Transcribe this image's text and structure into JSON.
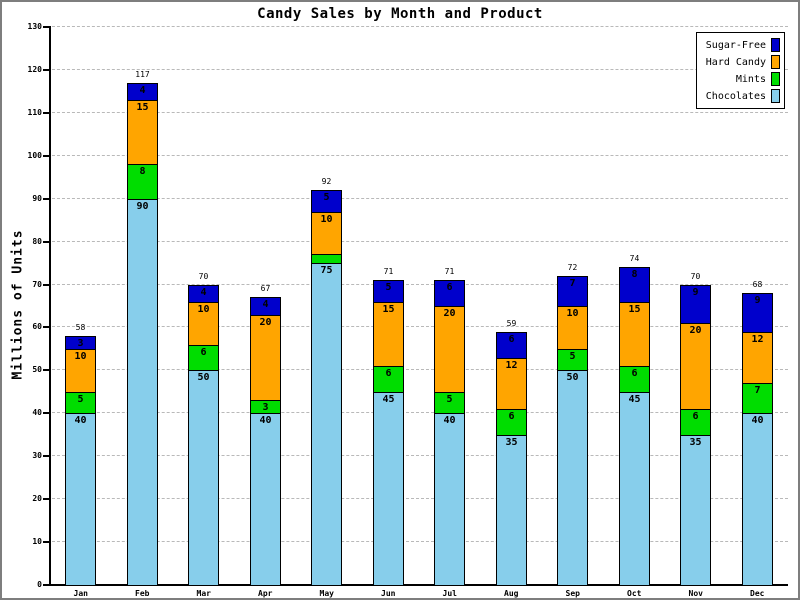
{
  "chart_data": {
    "type": "bar",
    "stacked": true,
    "title": "Candy Sales by Month and Product",
    "ylabel": "Millions of Units",
    "categories": [
      "Jan",
      "Feb",
      "Mar",
      "Apr",
      "May",
      "Jun",
      "Jul",
      "Aug",
      "Sep",
      "Oct",
      "Nov",
      "Dec"
    ],
    "series": [
      {
        "name": "Chocolates",
        "color": "#87CEEB",
        "values": [
          40,
          90,
          50,
          40,
          75,
          45,
          40,
          35,
          50,
          45,
          35,
          40
        ]
      },
      {
        "name": "Mints",
        "color": "#00DD00",
        "values": [
          5,
          8,
          6,
          3,
          2,
          6,
          5,
          6,
          5,
          6,
          6,
          7
        ]
      },
      {
        "name": "Hard Candy",
        "color": "#FFA500",
        "values": [
          10,
          15,
          10,
          20,
          10,
          15,
          20,
          12,
          10,
          15,
          20,
          12
        ]
      },
      {
        "name": "Sugar-Free",
        "color": "#0000CC",
        "values": [
          3,
          4,
          4,
          4,
          5,
          5,
          6,
          6,
          7,
          8,
          9,
          9
        ]
      }
    ],
    "totals": [
      58,
      117,
      70,
      67,
      92,
      71,
      71,
      59,
      72,
      74,
      70,
      68
    ],
    "ylim": [
      0,
      130
    ],
    "ytick_interval": 10,
    "yticks": [
      0,
      10,
      20,
      30,
      40,
      50,
      60,
      70,
      80,
      90,
      100,
      110,
      120,
      130
    ],
    "grid": "horizontal-dashed",
    "legend": {
      "position": "top-right",
      "entries": [
        "Sugar-Free",
        "Hard Candy",
        "Mints",
        "Chocolates"
      ]
    },
    "colors": {
      "Sugar-Free": "#0000CC",
      "Hard Candy": "#FFA500",
      "Mints": "#00DD00",
      "Chocolates": "#87CEEB"
    }
  }
}
